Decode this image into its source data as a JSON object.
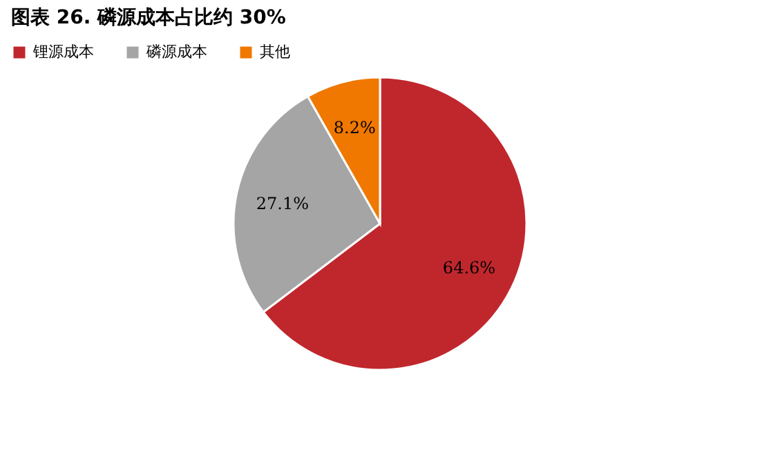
{
  "chart_data": {
    "type": "pie",
    "title": "图表 26. 磷源成本占比约 30%",
    "categories": [
      "锂源成本",
      "磷源成本",
      "其他"
    ],
    "values": [
      64.6,
      27.1,
      8.2
    ],
    "value_labels": [
      "64.6%",
      "27.1%",
      "8.2%"
    ],
    "colors": [
      "#c0272d",
      "#a5a5a5",
      "#f07800"
    ],
    "legend": "top"
  }
}
